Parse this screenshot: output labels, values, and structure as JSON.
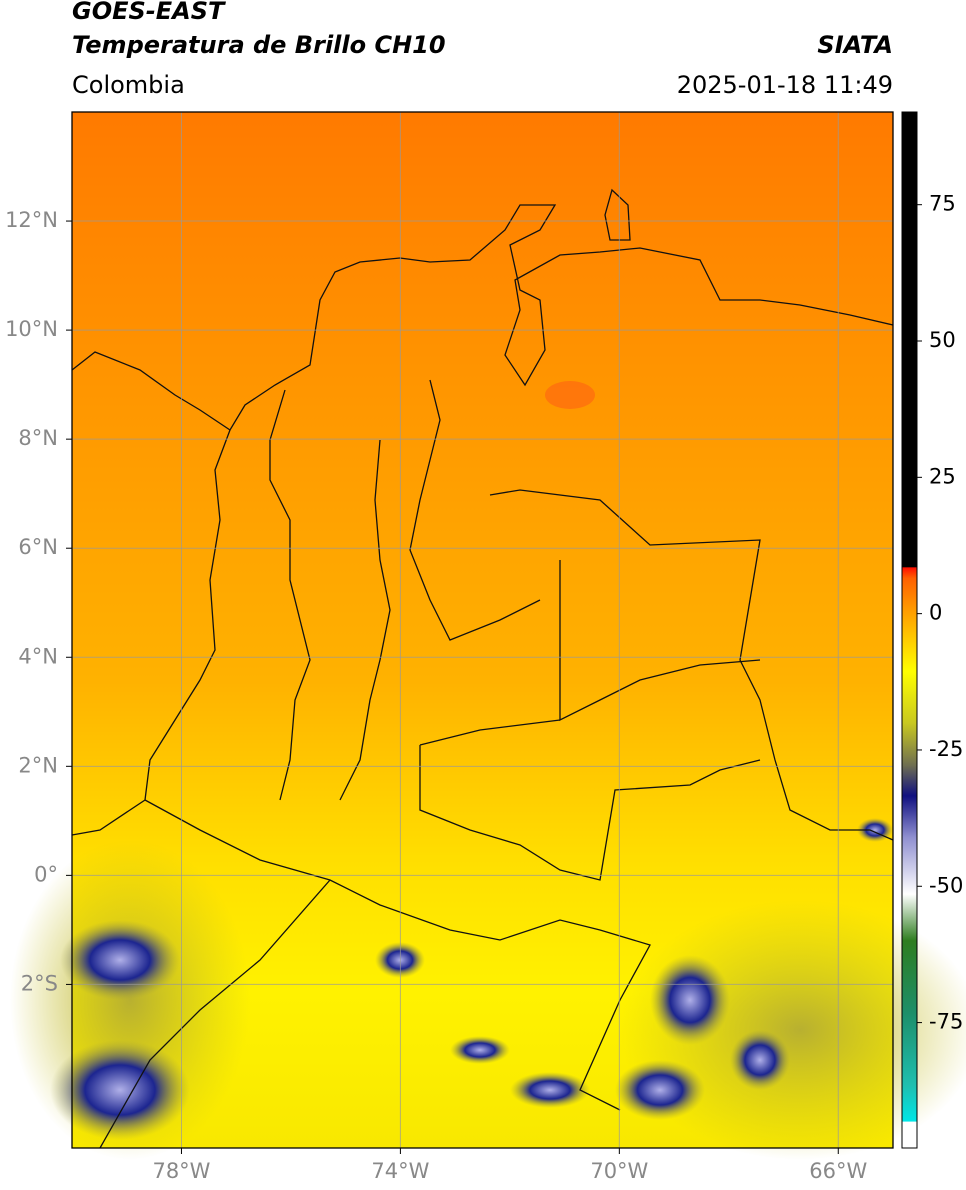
{
  "header": {
    "title": "GOES-EAST",
    "subtitle": "Temperatura de Brillo CH10",
    "source": "SIATA",
    "region": "Colombia",
    "datetime": "2025-01-18 11:49"
  },
  "map": {
    "lon_range": [
      -80,
      -65
    ],
    "lat_range": [
      -5,
      14
    ],
    "lat_ticks": [
      {
        "value": 12,
        "label": "12°N"
      },
      {
        "value": 10,
        "label": "10°N"
      },
      {
        "value": 8,
        "label": "8°N"
      },
      {
        "value": 6,
        "label": "6°N"
      },
      {
        "value": 4,
        "label": "4°N"
      },
      {
        "value": 2,
        "label": "2°N"
      },
      {
        "value": 0,
        "label": "0°"
      },
      {
        "value": -2,
        "label": "2°S"
      }
    ],
    "lon_ticks": [
      {
        "value": -78,
        "label": "78°W"
      },
      {
        "value": -74,
        "label": "74°W"
      },
      {
        "value": -70,
        "label": "70°W"
      },
      {
        "value": -66,
        "label": "66°W"
      }
    ]
  },
  "colorbar": {
    "range": [
      -98,
      92
    ],
    "ticks": [
      75,
      50,
      25,
      0,
      -25,
      -50,
      -75
    ]
  }
}
